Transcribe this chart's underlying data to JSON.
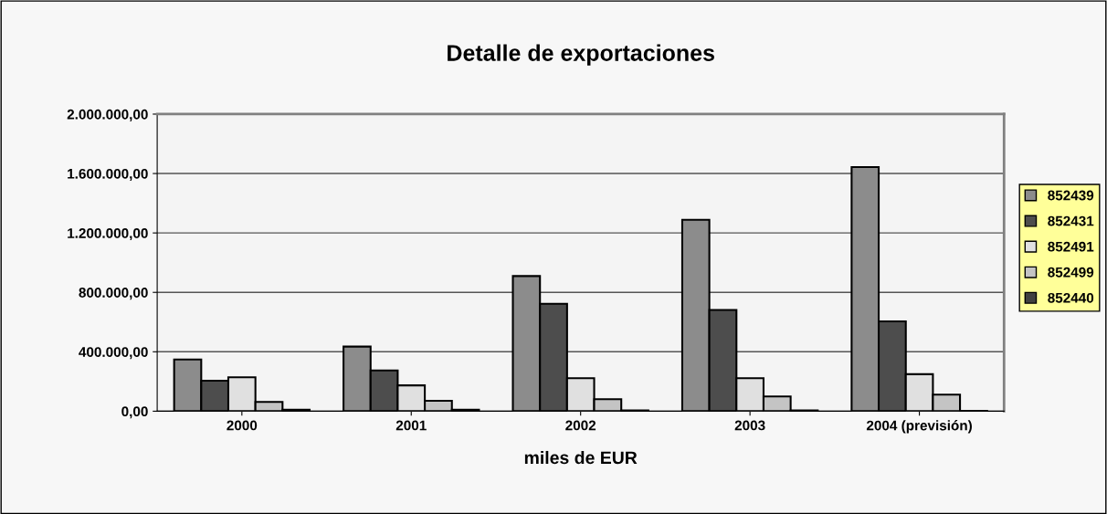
{
  "chart_data": {
    "type": "bar",
    "title": "Detalle de exportaciones",
    "xlabel": "miles de EUR",
    "categories": [
      "2000",
      "2001",
      "2002",
      "2003",
      "2004 (previsión)"
    ],
    "series": [
      {
        "name": "852439",
        "color": "#8c8c8c",
        "values": [
          348000,
          435000,
          910000,
          1289000,
          1643000
        ]
      },
      {
        "name": "852431",
        "color": "#4d4d4d",
        "values": [
          205000,
          274000,
          723000,
          682000,
          605000
        ]
      },
      {
        "name": "852491",
        "color": "#e0e0e0",
        "values": [
          228000,
          174000,
          222000,
          222000,
          249000
        ]
      },
      {
        "name": "852499",
        "color": "#c4c4c4",
        "values": [
          62000,
          70000,
          81000,
          99000,
          112000
        ]
      },
      {
        "name": "852440",
        "color": "#404040",
        "values": [
          10000,
          10000,
          5000,
          5000,
          2000
        ]
      }
    ],
    "ylim": [
      0,
      2000000
    ],
    "yticks": [
      {
        "value": 0,
        "label": "0,00"
      },
      {
        "value": 400000,
        "label": "400.000,00"
      },
      {
        "value": 800000,
        "label": "800.000,00"
      },
      {
        "value": 1200000,
        "label": "1.200.000,00"
      },
      {
        "value": 1600000,
        "label": "1.600.000,00"
      },
      {
        "value": 2000000,
        "label": "2.000.000,00"
      }
    ],
    "grid": "y",
    "legend": "right"
  }
}
